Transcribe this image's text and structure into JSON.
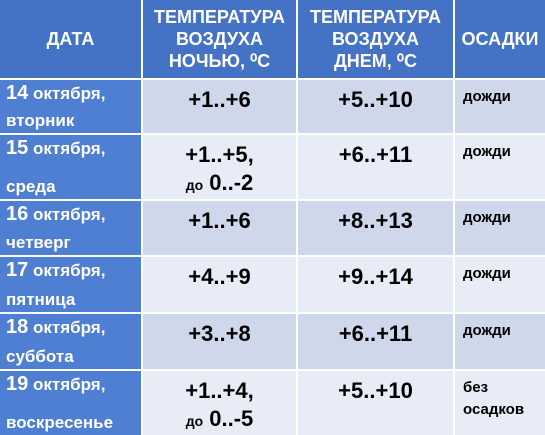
{
  "table": {
    "header": [
      "ДАТА",
      "ТЕМПЕРАТУРА ВОЗДУХА НОЧЬЮ, ⁰С",
      "ТЕМПЕРАТУРА ВОЗДУХА ДНЕМ, ⁰С",
      "ОСАДКИ"
    ],
    "rows": [
      {
        "day": "14",
        "month": "октября,",
        "weekday": "вторник",
        "night": "+1..+6",
        "daytime": "+5..+10",
        "precip": "дожди"
      },
      {
        "day": "15",
        "month": "октября,",
        "weekday": "среда",
        "night": "+1..+5,",
        "night_prefix": "до",
        "night_extra": "0..-2",
        "daytime": "+6..+11",
        "precip": "дожди"
      },
      {
        "day": "16",
        "month": "октября,",
        "weekday": "четверг",
        "night": "+1..+6",
        "daytime": "+8..+13",
        "precip": "дожди"
      },
      {
        "day": "17",
        "month": "октября,",
        "weekday": "пятница",
        "night": "+4..+9",
        "daytime": "+9..+14",
        "precip": "дожди"
      },
      {
        "day": "18",
        "month": "октября,",
        "weekday": "суббота",
        "night": "+3..+8",
        "daytime": "+6..+11",
        "precip": "дожди"
      },
      {
        "day": "19",
        "month": "октября,",
        "weekday": "воскресенье",
        "night": "+1..+4,",
        "night_prefix": "до",
        "night_extra": "0..-5",
        "daytime": "+5..+10",
        "precip": "без осадков"
      }
    ]
  }
}
